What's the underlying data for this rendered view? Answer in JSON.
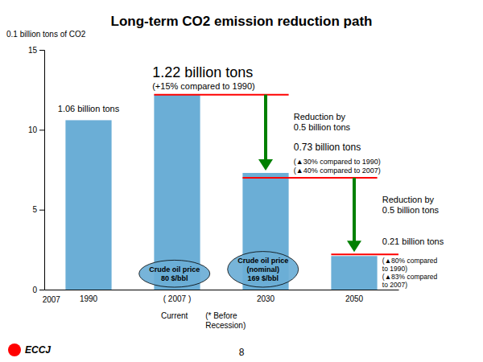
{
  "chart_data": {
    "type": "bar",
    "title": "Long-term CO2 emission reduction path",
    "y_label": "0.1 billion tons of CO2",
    "categories": [
      "1990",
      "( 2007 )",
      "2030",
      "2050"
    ],
    "values": [
      10.6,
      12.2,
      7.3,
      2.1
    ],
    "color": "#6baed6",
    "ylim": [
      0,
      15
    ],
    "yticks": [
      0,
      5,
      10,
      15
    ],
    "grid": false,
    "reference_lines": [
      {
        "value": 12.2,
        "color": "red"
      },
      {
        "value": 7.0,
        "color": "red"
      },
      {
        "value": 2.2,
        "color": "red"
      }
    ],
    "arrows": [
      {
        "from": 12.2,
        "to": 7.45,
        "color": "green"
      },
      {
        "from": 7.0,
        "to": 2.35,
        "color": "green"
      }
    ],
    "annotations": [
      "1.06 billion tons",
      "1.22 billion tons",
      "(+15% compared to 1990)",
      "Reduction by\n0.5 billion tons",
      "0.73 billion tons",
      "(▲30% compared to 1990)\n(▲40% compared to 2007)",
      "Reduction by\n0.5 billion tons",
      "0.21 billion tons",
      "(▲80% compared\nto 1990)\n(▲83% compared\nto 2007)",
      "Crude oil price\n80 $/bbl",
      "Crude oil price\n(nominal)\n169 $/bbl",
      "Current",
      "(* Before\nRecession)",
      "2007",
      "8",
      "ECCJ"
    ]
  }
}
